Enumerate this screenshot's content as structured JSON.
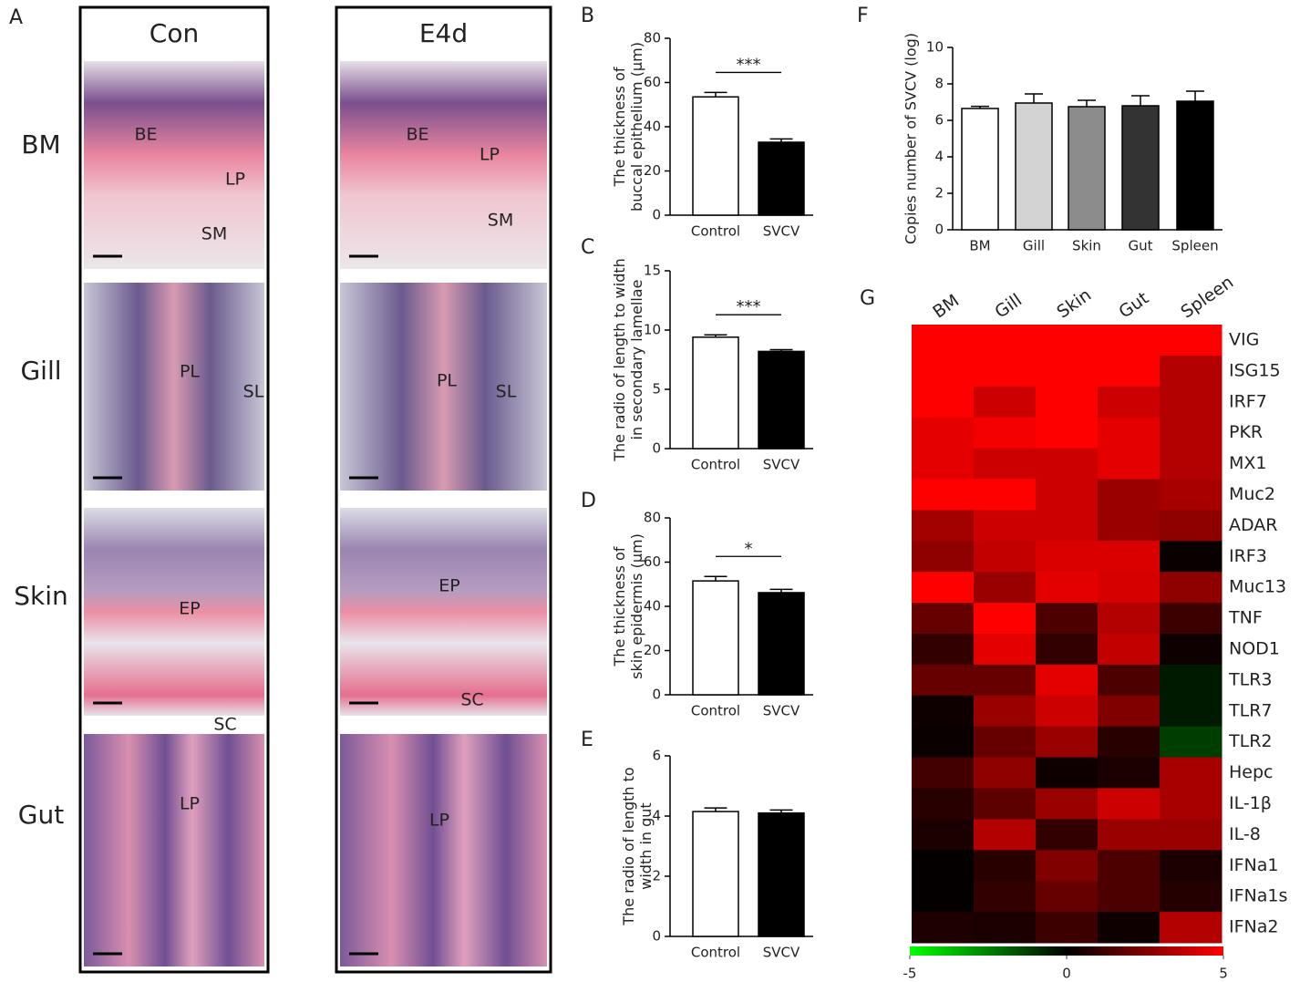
{
  "panel_labels": [
    "A",
    "B",
    "C",
    "D",
    "E",
    "F",
    "G"
  ],
  "histology": {
    "columns": [
      "Con",
      "E4d"
    ],
    "rows": [
      "BM",
      "Gill",
      "Skin",
      "Gut"
    ],
    "annotations": [
      [
        [
          "BE",
          "LP",
          "SM"
        ],
        [
          "BE",
          "LP",
          "SM"
        ]
      ],
      [
        [
          "PL",
          "SL"
        ],
        [
          "PL",
          "SL"
        ]
      ],
      [
        [
          "EP",
          "SC"
        ],
        [
          "EP",
          "SC"
        ]
      ],
      [
        [
          "LP"
        ],
        [
          "LP"
        ]
      ]
    ]
  },
  "chart_data": [
    {
      "type": "bar",
      "ylabel": [
        "The thickness of",
        "buccal epithelium (μm)"
      ],
      "categories": [
        "Control",
        "SVCV"
      ],
      "values": [
        53.5,
        33
      ],
      "errors": [
        2,
        1.5
      ],
      "colors": [
        "#ffffff",
        "#000000"
      ],
      "ylim": [
        0,
        80
      ],
      "yticks": [
        0,
        20,
        40,
        60,
        80
      ],
      "significance": "***"
    },
    {
      "type": "bar",
      "ylabel": [
        "The radio of length to width",
        "in secondary lamellae"
      ],
      "categories": [
        "Control",
        "SVCV"
      ],
      "values": [
        9.4,
        8.2
      ],
      "errors": [
        0.2,
        0.15
      ],
      "colors": [
        "#ffffff",
        "#000000"
      ],
      "ylim": [
        0,
        15
      ],
      "yticks": [
        0,
        5,
        10,
        15
      ],
      "significance": "***"
    },
    {
      "type": "bar",
      "ylabel": [
        "The thickness of",
        "skin epidermis (μm)"
      ],
      "categories": [
        "Control",
        "SVCV"
      ],
      "values": [
        51.5,
        46.2
      ],
      "errors": [
        2,
        1.5
      ],
      "colors": [
        "#ffffff",
        "#000000"
      ],
      "ylim": [
        0,
        80
      ],
      "yticks": [
        0,
        20,
        40,
        60,
        80
      ],
      "significance": "*"
    },
    {
      "type": "bar",
      "ylabel": [
        "The radio of length to",
        "width in gut"
      ],
      "categories": [
        "Control",
        "SVCV"
      ],
      "values": [
        4.15,
        4.1
      ],
      "errors": [
        0.12,
        0.1
      ],
      "colors": [
        "#ffffff",
        "#000000"
      ],
      "ylim": [
        0,
        6
      ],
      "yticks": [
        0,
        2,
        4,
        6
      ]
    },
    {
      "type": "bar",
      "ylabel": [
        "Copies number of SVCV (log)"
      ],
      "categories": [
        "BM",
        "Gill",
        "Skin",
        "Gut",
        "Spleen"
      ],
      "values": [
        6.65,
        6.95,
        6.75,
        6.8,
        7.05
      ],
      "errors": [
        0.12,
        0.5,
        0.35,
        0.55,
        0.55
      ],
      "colors": [
        "#ffffff",
        "#d3d3d3",
        "#8c8c8c",
        "#333333",
        "#000000"
      ],
      "ylim": [
        0,
        10
      ],
      "yticks": [
        0,
        2,
        4,
        6,
        8,
        10
      ]
    },
    {
      "type": "heatmap",
      "columns": [
        "BM",
        "Gill",
        "Skin",
        "Gut",
        "Spleen"
      ],
      "rows": [
        "VIG",
        "ISG15",
        "IRF7",
        "PKR",
        "MX1",
        "Muc2",
        "ADAR",
        "IRF3",
        "Muc13",
        "TNF",
        "NOD1",
        "TLR3",
        "TLR7",
        "TLR2",
        "Hepc",
        "IL-1β",
        "IL-8",
        "IFNa1",
        "IFNa1s",
        "IFNa2"
      ],
      "values": [
        [
          5,
          5,
          5,
          5,
          5
        ],
        [
          5,
          5,
          5,
          5,
          3.5
        ],
        [
          5,
          4,
          5,
          4,
          3.5
        ],
        [
          4.5,
          4.8,
          5,
          4.5,
          3.5
        ],
        [
          4.5,
          4,
          4,
          4.5,
          3.5
        ],
        [
          5,
          5,
          4,
          3,
          3.3
        ],
        [
          3.2,
          4,
          4,
          3,
          2.8
        ],
        [
          2.8,
          3.8,
          4.3,
          4.3,
          0.2
        ],
        [
          5,
          3,
          4.5,
          4.2,
          2.8
        ],
        [
          2,
          5,
          1.5,
          3.5,
          1.2
        ],
        [
          1,
          4.5,
          1,
          3.8,
          0.3
        ],
        [
          2,
          2,
          4.5,
          1.5,
          -0.5
        ],
        [
          0.3,
          3,
          4,
          2.5,
          -0.5
        ],
        [
          0.2,
          2,
          3,
          0.8,
          -1.2
        ],
        [
          1.3,
          2.8,
          0.3,
          0.5,
          3.3
        ],
        [
          0.8,
          1.8,
          3,
          4,
          3.3
        ],
        [
          0.5,
          3.5,
          1,
          3,
          3
        ],
        [
          0.1,
          0.8,
          2.5,
          1.5,
          0.5
        ],
        [
          0.1,
          1,
          2,
          1.5,
          0.7
        ],
        [
          0.6,
          0.5,
          1.2,
          0.3,
          3.5
        ]
      ],
      "colorscale": [
        "#00ff00",
        "#000000",
        "#ff0000"
      ],
      "clim": [
        -5,
        5
      ],
      "cticks": [
        -5,
        0,
        5
      ]
    }
  ]
}
